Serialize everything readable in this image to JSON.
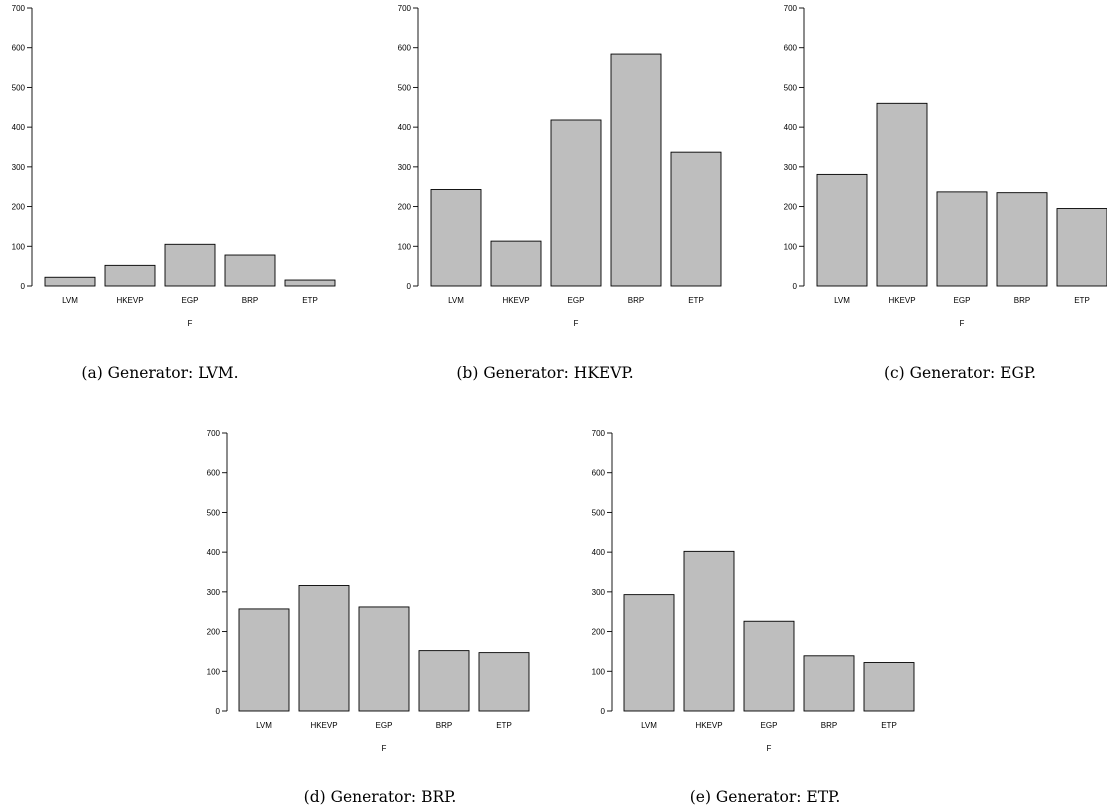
{
  "chart_data": [
    {
      "type": "bar",
      "caption": "(a) Generator: LVM.",
      "categories": [
        "LVM",
        "HKEVP",
        "EGP",
        "BRP",
        "ETP"
      ],
      "values": [
        22,
        52,
        105,
        78,
        15
      ],
      "xlabel": "F",
      "ylabel": "",
      "ylim": [
        0,
        700
      ],
      "yticks": [
        0,
        100,
        200,
        300,
        400,
        500,
        600,
        700
      ]
    },
    {
      "type": "bar",
      "caption": "(b) Generator: HKEVP.",
      "categories": [
        "LVM",
        "HKEVP",
        "EGP",
        "BRP",
        "ETP"
      ],
      "values": [
        243,
        113,
        418,
        584,
        337
      ],
      "xlabel": "F",
      "ylabel": "",
      "ylim": [
        0,
        700
      ],
      "yticks": [
        0,
        100,
        200,
        300,
        400,
        500,
        600,
        700
      ]
    },
    {
      "type": "bar",
      "caption": "(c) Generator: EGP.",
      "categories": [
        "LVM",
        "HKEVP",
        "EGP",
        "BRP",
        "ETP"
      ],
      "values": [
        281,
        460,
        237,
        235,
        195
      ],
      "xlabel": "F",
      "ylabel": "",
      "ylim": [
        0,
        700
      ],
      "yticks": [
        0,
        100,
        200,
        300,
        400,
        500,
        600,
        700
      ]
    },
    {
      "type": "bar",
      "caption": "(d) Generator: BRP.",
      "categories": [
        "LVM",
        "HKEVP",
        "EGP",
        "BRP",
        "ETP"
      ],
      "values": [
        257,
        316,
        262,
        152,
        147
      ],
      "xlabel": "F",
      "ylabel": "",
      "ylim": [
        0,
        700
      ],
      "yticks": [
        0,
        100,
        200,
        300,
        400,
        500,
        600,
        700
      ]
    },
    {
      "type": "bar",
      "caption": "(e) Generator: ETP.",
      "categories": [
        "LVM",
        "HKEVP",
        "EGP",
        "BRP",
        "ETP"
      ],
      "values": [
        293,
        402,
        226,
        139,
        122
      ],
      "xlabel": "F",
      "ylabel": "",
      "ylim": [
        0,
        700
      ],
      "yticks": [
        0,
        100,
        200,
        300,
        400,
        500,
        600,
        700
      ]
    }
  ]
}
